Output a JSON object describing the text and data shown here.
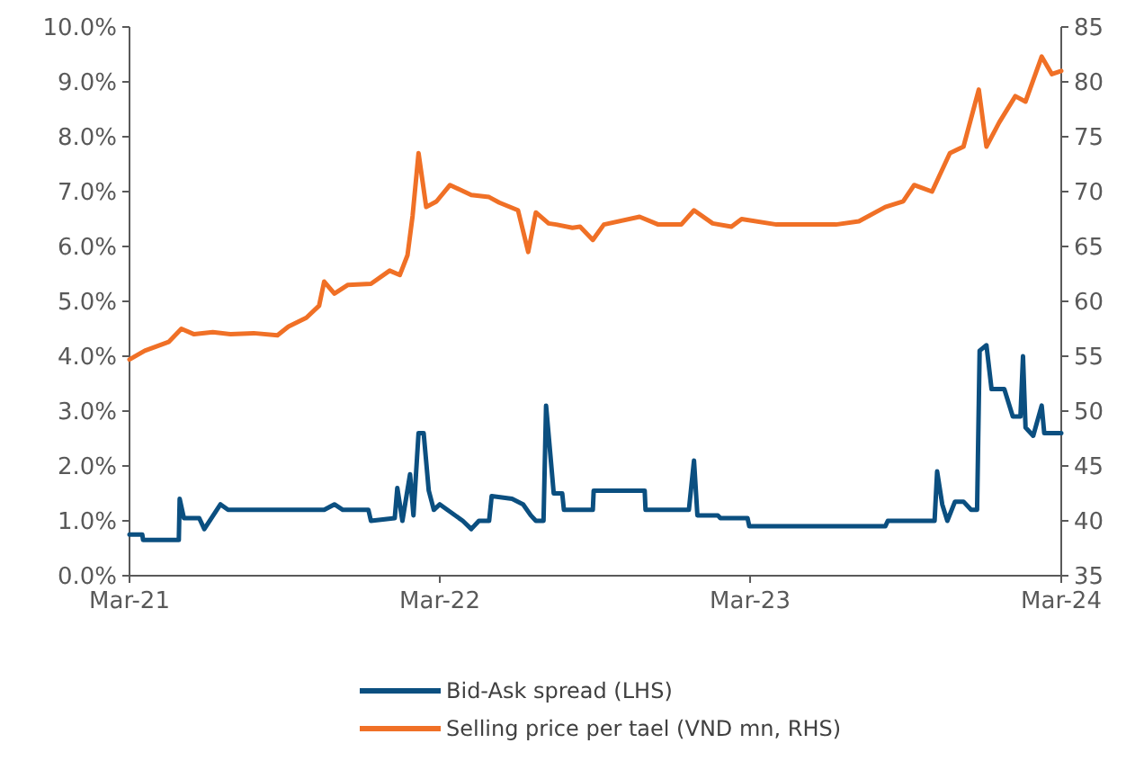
{
  "chart_data": {
    "type": "line",
    "xlim": [
      "2021-03-01",
      "2024-03-01"
    ],
    "xticks": [
      {
        "value": "2021-03-01",
        "label": "Mar-21"
      },
      {
        "value": "2022-03-01",
        "label": "Mar-22"
      },
      {
        "value": "2023-03-01",
        "label": "Mar-23"
      },
      {
        "value": "2024-03-01",
        "label": "Mar-24"
      }
    ],
    "ylim": [
      0,
      10
    ],
    "yticks": [
      {
        "value": 0,
        "label": "0.0%"
      },
      {
        "value": 1,
        "label": "1.0%"
      },
      {
        "value": 2,
        "label": "2.0%"
      },
      {
        "value": 3,
        "label": "3.0%"
      },
      {
        "value": 4,
        "label": "4.0%"
      },
      {
        "value": 5,
        "label": "5.0%"
      },
      {
        "value": 6,
        "label": "6.0%"
      },
      {
        "value": 7,
        "label": "7.0%"
      },
      {
        "value": 8,
        "label": "8.0%"
      },
      {
        "value": 9,
        "label": "9.0%"
      },
      {
        "value": 10,
        "label": "10.0%"
      }
    ],
    "y2lim": [
      35,
      85
    ],
    "y2ticks": [
      35,
      40,
      45,
      50,
      55,
      60,
      65,
      70,
      75,
      80,
      85
    ],
    "grid": false,
    "legend": "bottom",
    "series": [
      {
        "name": "Bid-Ask spread (LHS)",
        "color": "#0b4f80",
        "x": [
          "2021-03-01",
          "2021-03-16",
          "2021-03-17",
          "2021-04-28",
          "2021-04-29",
          "2021-05-04",
          "2021-05-22",
          "2021-05-28",
          "2021-06-16",
          "2021-06-25",
          "2021-10-16",
          "2021-10-28",
          "2021-11-07",
          "2021-12-07",
          "2021-12-10",
          "2022-01-07",
          "2022-01-10",
          "2022-01-16",
          "2022-01-25",
          "2022-01-29",
          "2022-02-04",
          "2022-02-10",
          "2022-02-16",
          "2022-02-22",
          "2022-03-01",
          "2022-03-28",
          "2022-04-07",
          "2022-04-16",
          "2022-04-28",
          "2022-05-01",
          "2022-05-25",
          "2022-06-07",
          "2022-06-16",
          "2022-06-22",
          "2022-07-01",
          "2022-07-04",
          "2022-07-13",
          "2022-07-23",
          "2022-07-25",
          "2022-08-28",
          "2022-08-29",
          "2022-10-28",
          "2022-10-29",
          "2022-12-19",
          "2022-12-25",
          "2022-12-29",
          "2023-01-22",
          "2023-01-25",
          "2023-02-26",
          "2023-02-28",
          "2023-08-07",
          "2023-08-10",
          "2023-10-04",
          "2023-10-07",
          "2023-10-13",
          "2023-10-19",
          "2023-10-28",
          "2023-11-07",
          "2023-11-16",
          "2023-11-23",
          "2023-11-26",
          "2023-12-04",
          "2023-12-10",
          "2023-12-25",
          "2024-01-04",
          "2024-01-13",
          "2024-01-16",
          "2024-01-19",
          "2024-01-28",
          "2024-02-07",
          "2024-02-10",
          "2024-03-01"
        ],
        "values": [
          0.75,
          0.75,
          0.65,
          0.65,
          1.4,
          1.05,
          1.05,
          0.85,
          1.3,
          1.2,
          1.2,
          1.3,
          1.2,
          1.2,
          1.0,
          1.05,
          1.6,
          1.0,
          1.85,
          1.1,
          2.6,
          2.6,
          1.55,
          1.2,
          1.3,
          1.0,
          0.85,
          1.0,
          1.0,
          1.45,
          1.4,
          1.3,
          1.1,
          1.0,
          1.0,
          3.1,
          1.5,
          1.5,
          1.2,
          1.2,
          1.55,
          1.55,
          1.2,
          1.2,
          2.1,
          1.1,
          1.1,
          1.05,
          1.05,
          0.9,
          0.9,
          1.0,
          1.0,
          1.9,
          1.3,
          1.0,
          1.35,
          1.35,
          1.2,
          1.2,
          4.1,
          4.2,
          3.4,
          3.4,
          2.9,
          2.9,
          4.0,
          2.7,
          2.55,
          3.1,
          2.6,
          2.6
        ]
      },
      {
        "name": "Selling price per tael (VND mn, RHS)",
        "color": "#f07026",
        "axis": "y2",
        "x": [
          "2021-03-01",
          "2021-03-19",
          "2021-04-16",
          "2021-05-01",
          "2021-05-16",
          "2021-06-07",
          "2021-06-28",
          "2021-07-25",
          "2021-08-22",
          "2021-09-04",
          "2021-09-25",
          "2021-10-10",
          "2021-10-16",
          "2021-10-28",
          "2021-11-13",
          "2021-12-10",
          "2022-01-01",
          "2022-01-13",
          "2022-01-22",
          "2022-01-28",
          "2022-02-04",
          "2022-02-13",
          "2022-02-25",
          "2022-03-13",
          "2022-04-07",
          "2022-04-28",
          "2022-05-10",
          "2022-06-01",
          "2022-06-13",
          "2022-06-22",
          "2022-07-07",
          "2022-07-16",
          "2022-08-04",
          "2022-08-13",
          "2022-08-28",
          "2022-09-10",
          "2022-10-22",
          "2022-11-13",
          "2022-12-10",
          "2022-12-25",
          "2023-01-16",
          "2023-02-07",
          "2023-02-19",
          "2023-04-01",
          "2023-06-10",
          "2023-07-07",
          "2023-08-07",
          "2023-08-28",
          "2023-09-10",
          "2023-10-01",
          "2023-10-22",
          "2023-11-07",
          "2023-11-25",
          "2023-12-04",
          "2023-12-19",
          "2024-01-07",
          "2024-01-19",
          "2024-02-07",
          "2024-02-19",
          "2024-03-01"
        ],
        "values": [
          54.7,
          55.5,
          56.3,
          57.5,
          57.0,
          57.2,
          57.0,
          57.1,
          56.9,
          57.7,
          58.5,
          59.6,
          61.8,
          60.7,
          61.5,
          61.6,
          62.8,
          62.4,
          64.2,
          67.8,
          73.5,
          68.6,
          69.1,
          70.6,
          69.7,
          69.5,
          69.0,
          68.3,
          64.5,
          68.1,
          67.1,
          67.0,
          66.7,
          66.8,
          65.6,
          67.0,
          67.7,
          67.0,
          67.0,
          68.3,
          67.1,
          66.8,
          67.5,
          67.0,
          67.0,
          67.3,
          68.6,
          69.1,
          70.6,
          70.0,
          73.5,
          74.1,
          79.3,
          74.1,
          76.3,
          78.7,
          78.2,
          82.3,
          80.7,
          81.0
        ]
      }
    ]
  }
}
